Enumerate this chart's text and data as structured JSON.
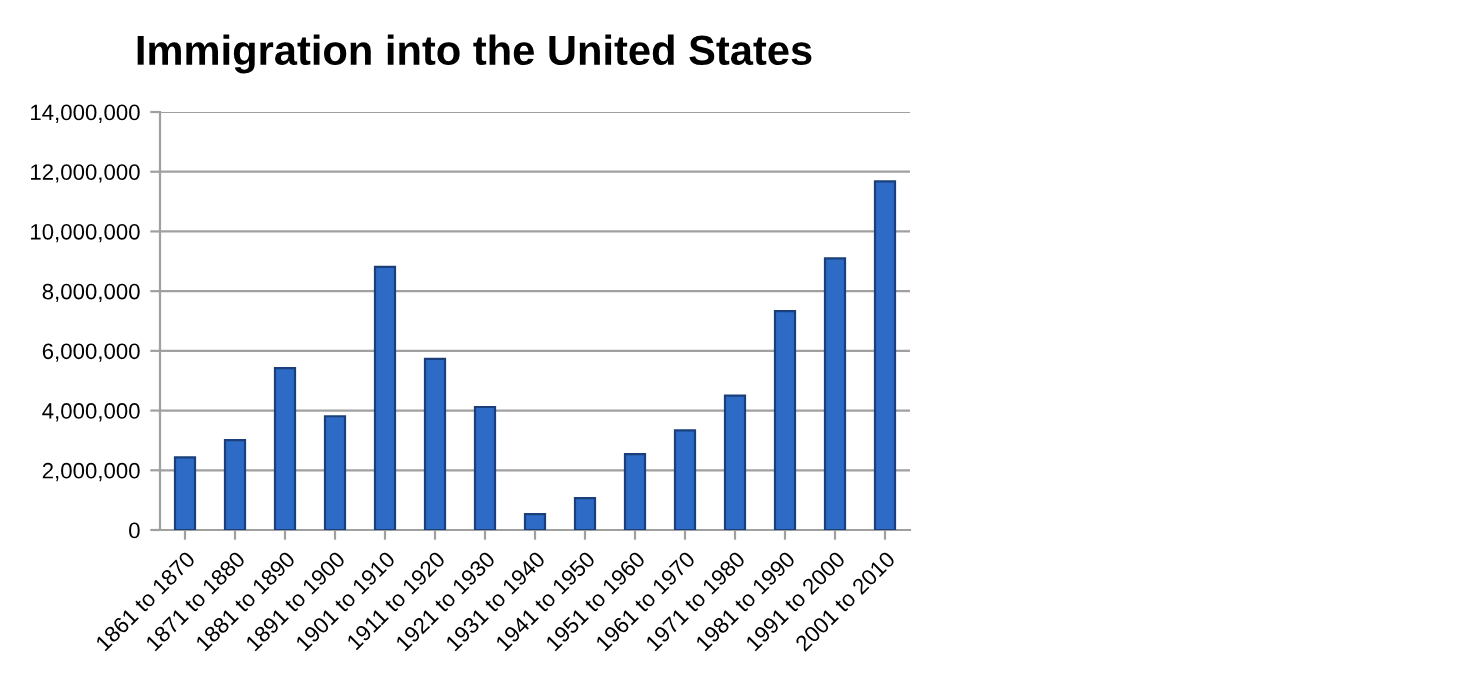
{
  "chart_data": {
    "type": "bar",
    "title": "Immigration into the United States",
    "categories": [
      "1861 to 1870",
      "1871 to 1880",
      "1881 to 1890",
      "1891 to 1900",
      "1901 to 1910",
      "1911 to 1920",
      "1921 to 1930",
      "1931 to 1940",
      "1941 to 1950",
      "1951 to 1960",
      "1961 to 1970",
      "1971 to 1980",
      "1981 to 1990",
      "1991 to 2000",
      "2001 to 2010"
    ],
    "values": [
      2430000,
      3010000,
      5420000,
      3810000,
      8810000,
      5730000,
      4120000,
      530000,
      1070000,
      2540000,
      3340000,
      4500000,
      7330000,
      9100000,
      11680000
    ],
    "color": "#2e6bc6",
    "ylim": [
      0,
      14000000
    ],
    "yticks": [
      {
        "value": 0,
        "label": "0"
      },
      {
        "value": 2000000,
        "label": "2,000,000"
      },
      {
        "value": 4000000,
        "label": "4,000,000"
      },
      {
        "value": 6000000,
        "label": "6,000,000"
      },
      {
        "value": 8000000,
        "label": "8,000,000"
      },
      {
        "value": 10000000,
        "label": "10,000,000"
      },
      {
        "value": 12000000,
        "label": "12,000,000"
      },
      {
        "value": 14000000,
        "label": "14,000,000"
      }
    ],
    "grid": "y",
    "legend": false
  }
}
